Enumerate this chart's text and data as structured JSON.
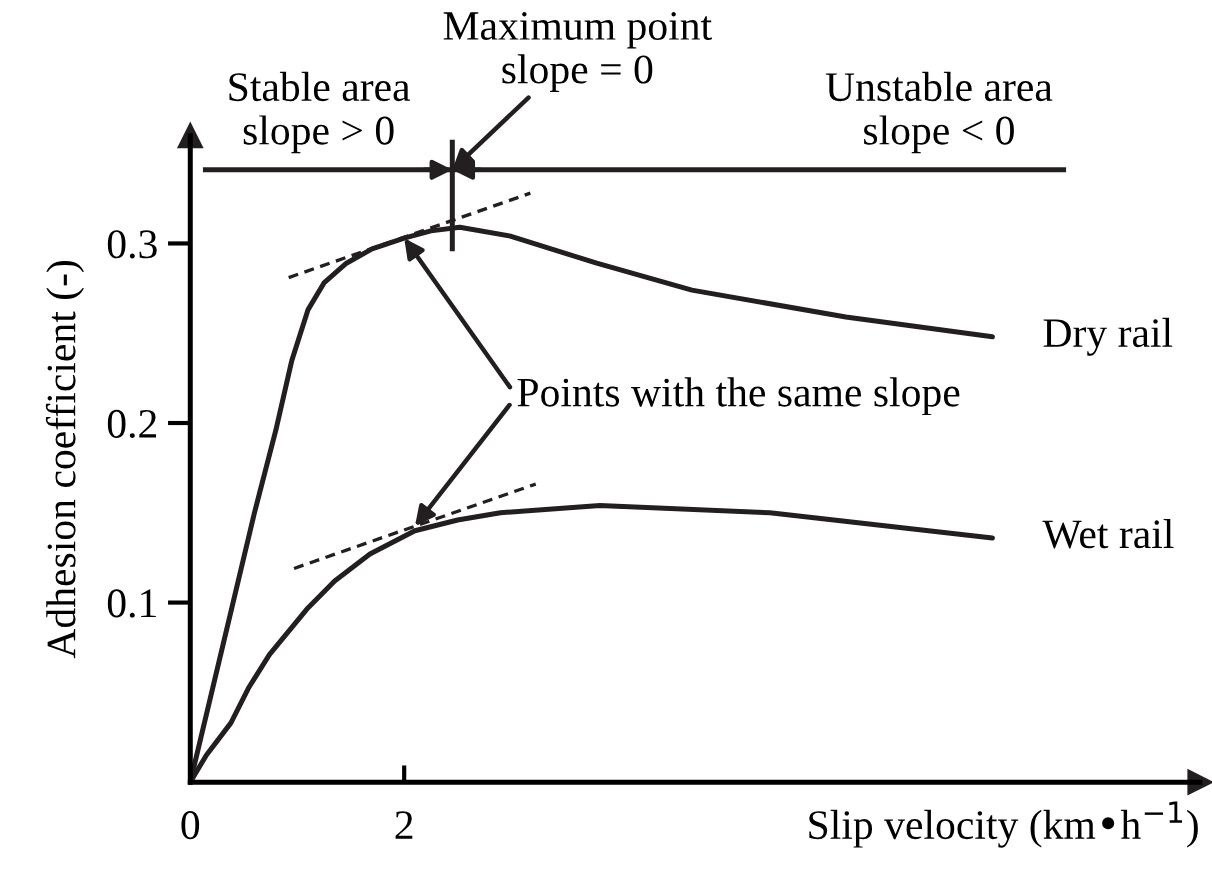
{
  "chart_data": {
    "type": "line",
    "xlabel": "Slip velocity (km•h$^{−1}$)",
    "ylabel": "Adhesion coefficient (-)",
    "xlim": [
      0,
      9.44
    ],
    "ylim": [
      0,
      0.36
    ],
    "xticks": [
      0,
      2
    ],
    "yticks": [
      0.1,
      0.2,
      0.3
    ],
    "grid": false,
    "legend": false,
    "line_style": "solid",
    "series": [
      {
        "name": "Dry rail",
        "color": "#231f20",
        "x": [
          0,
          0.2,
          0.4,
          0.6,
          0.8,
          0.95,
          1.1,
          1.25,
          1.46,
          1.7,
          2.0,
          2.25,
          2.52,
          3.0,
          3.8,
          4.69,
          6.13,
          7.5
        ],
        "values": [
          0,
          0.05,
          0.1,
          0.15,
          0.196,
          0.235,
          0.263,
          0.278,
          0.289,
          0.297,
          0.303,
          0.307,
          0.309,
          0.304,
          0.289,
          0.274,
          0.259,
          0.248
        ]
      },
      {
        "name": "Wet rail",
        "color": "#231f20",
        "x": [
          0,
          0.15,
          0.38,
          0.55,
          0.74,
          1.1,
          1.35,
          1.68,
          2.1,
          2.5,
          2.9,
          3.83,
          5.42,
          7.5
        ],
        "values": [
          0,
          0.015,
          0.033,
          0.053,
          0.071,
          0.097,
          0.112,
          0.127,
          0.14,
          0.146,
          0.15,
          0.154,
          0.15,
          0.136
        ]
      },
      {
        "color": "#231f20",
        "line_style": "dashed",
        "x": [
          0.92,
          3.18
        ],
        "values": [
          0.281,
          0.328
        ]
      },
      {
        "color": "#231f20",
        "line_style": "dashed",
        "x": [
          0.97,
          3.23
        ],
        "values": [
          0.119,
          0.166
        ]
      }
    ],
    "ref_lines": [
      {
        "axis": "y",
        "value": 0.341,
        "color": "#231f20"
      },
      {
        "axis": "x",
        "value": 2.45,
        "color": "#231f20"
      }
    ],
    "annotations": [
      {
        "text": "Stable area\nslope > 0",
        "x": 1.2,
        "y": 0.341
      },
      {
        "text": "Maximum point\nslope = 0",
        "x": 2.45,
        "y": 0.341
      },
      {
        "text": "Unstable area\nslope < 0",
        "x": 7.0,
        "y": 0.341
      },
      {
        "text": "Points with the same slope",
        "x": 2.0,
        "y": 0.303
      }
    ]
  }
}
